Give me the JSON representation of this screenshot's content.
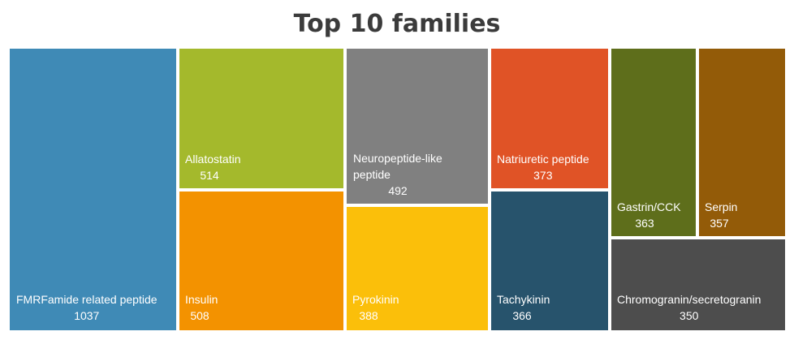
{
  "chart_data": {
    "type": "treemap",
    "title": "Top 10 families",
    "items": [
      {
        "name": "FMRFamide related peptide",
        "value": 1037,
        "color": "#3f8ab6"
      },
      {
        "name": "Allatostatin",
        "value": 514,
        "color": "#a4b92c"
      },
      {
        "name": "Insulin",
        "value": 508,
        "color": "#f39200"
      },
      {
        "name": "Neuropeptide-like peptide",
        "value": 492,
        "color": "#808080"
      },
      {
        "name": "Pyrokinin",
        "value": 388,
        "color": "#fbbf0a"
      },
      {
        "name": "Natriuretic peptide",
        "value": 373,
        "color": "#e05326"
      },
      {
        "name": "Tachykinin",
        "value": 366,
        "color": "#27536c"
      },
      {
        "name": "Gastrin/CCK",
        "value": 363,
        "color": "#5e6e1b"
      },
      {
        "name": "Serpin",
        "value": 357,
        "color": "#935b08"
      },
      {
        "name": "Chromogranin/secretogranin",
        "value": 350,
        "color": "#4d4d4d"
      }
    ]
  }
}
